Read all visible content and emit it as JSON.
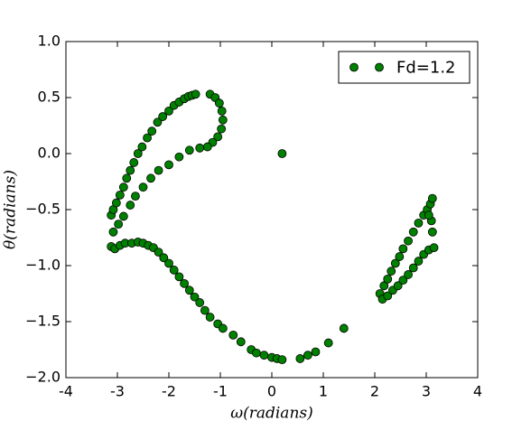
{
  "chart_data": {
    "type": "scatter",
    "xlabel": "ω(radians)",
    "ylabel": "θ(radians)",
    "xlim": [
      -4,
      4
    ],
    "ylim": [
      -2,
      1
    ],
    "xticks": [
      -4,
      -3,
      -2,
      -1,
      0,
      1,
      2,
      3,
      4
    ],
    "yticks": [
      {
        "value": 1,
        "label": "1.0"
      },
      {
        "value": 0.5,
        "label": "0.5"
      },
      {
        "value": 0,
        "label": "0.0"
      },
      {
        "value": -0.5,
        "label": "−0.5"
      },
      {
        "value": -1,
        "label": "−1.0"
      },
      {
        "value": -1.5,
        "label": "−1.5"
      },
      {
        "value": -2,
        "label": "−2.0"
      }
    ],
    "legend": "upper right",
    "series": [
      {
        "name": "Fd=1.2",
        "color": "#008000",
        "x": [
          -3.12,
          -3.08,
          -3.02,
          -2.95,
          -2.88,
          -2.82,
          -2.75,
          -2.68,
          -2.6,
          -2.52,
          -2.42,
          -2.33,
          -2.22,
          -2.12,
          -2.0,
          -1.9,
          -1.8,
          -1.7,
          -1.62,
          -1.55,
          -1.48,
          -1.2,
          -1.1,
          -1.02,
          -0.97,
          -0.95,
          -0.98,
          -1.05,
          -1.15,
          -1.25,
          -1.4,
          -1.6,
          -1.8,
          -2.0,
          -2.2,
          -2.35,
          -2.5,
          -2.65,
          -2.75,
          -2.88,
          -2.98,
          -3.08,
          -3.12,
          -3.05,
          -2.95,
          -2.85,
          -2.72,
          -2.6,
          -2.5,
          -2.4,
          -2.3,
          -2.2,
          -2.1,
          -2.0,
          -1.9,
          -1.8,
          -1.7,
          -1.6,
          -1.5,
          -1.4,
          -1.3,
          -1.2,
          -1.05,
          -0.95,
          -0.75,
          -0.6,
          -0.4,
          -0.3,
          -0.15,
          0.0,
          0.1,
          0.2,
          0.55,
          0.7,
          0.85,
          1.1,
          1.4,
          0.2,
          2.1,
          2.18,
          2.25,
          2.32,
          2.4,
          2.48,
          2.55,
          2.65,
          2.75,
          2.85,
          2.95,
          3.02,
          3.08,
          3.12,
          2.15,
          2.25,
          2.35,
          2.45,
          2.55,
          2.65,
          2.75,
          2.85,
          2.95,
          3.05,
          3.15,
          3.12,
          3.1,
          3.05
        ],
        "values": [
          -0.55,
          -0.5,
          -0.44,
          -0.37,
          -0.3,
          -0.22,
          -0.15,
          -0.08,
          0.0,
          0.06,
          0.14,
          0.2,
          0.28,
          0.33,
          0.38,
          0.43,
          0.46,
          0.49,
          0.51,
          0.52,
          0.53,
          0.53,
          0.5,
          0.45,
          0.38,
          0.3,
          0.22,
          0.15,
          0.1,
          0.06,
          0.05,
          0.03,
          -0.03,
          -0.1,
          -0.15,
          -0.22,
          -0.3,
          -0.38,
          -0.46,
          -0.56,
          -0.63,
          -0.7,
          -0.83,
          -0.85,
          -0.82,
          -0.8,
          -0.8,
          -0.79,
          -0.8,
          -0.82,
          -0.84,
          -0.88,
          -0.93,
          -0.98,
          -1.04,
          -1.1,
          -1.16,
          -1.22,
          -1.28,
          -1.33,
          -1.4,
          -1.46,
          -1.52,
          -1.56,
          -1.62,
          -1.68,
          -1.75,
          -1.78,
          -1.8,
          -1.82,
          -1.83,
          -1.84,
          -1.83,
          -1.8,
          -1.77,
          -1.69,
          -1.56,
          0.0,
          -1.25,
          -1.18,
          -1.12,
          -1.05,
          -0.98,
          -0.92,
          -0.85,
          -0.78,
          -0.7,
          -0.62,
          -0.55,
          -0.5,
          -0.45,
          -0.4,
          -1.3,
          -1.27,
          -1.22,
          -1.18,
          -1.13,
          -1.08,
          -1.02,
          -0.96,
          -0.9,
          -0.86,
          -0.84,
          -0.7,
          -0.6,
          -0.55
        ]
      }
    ]
  }
}
